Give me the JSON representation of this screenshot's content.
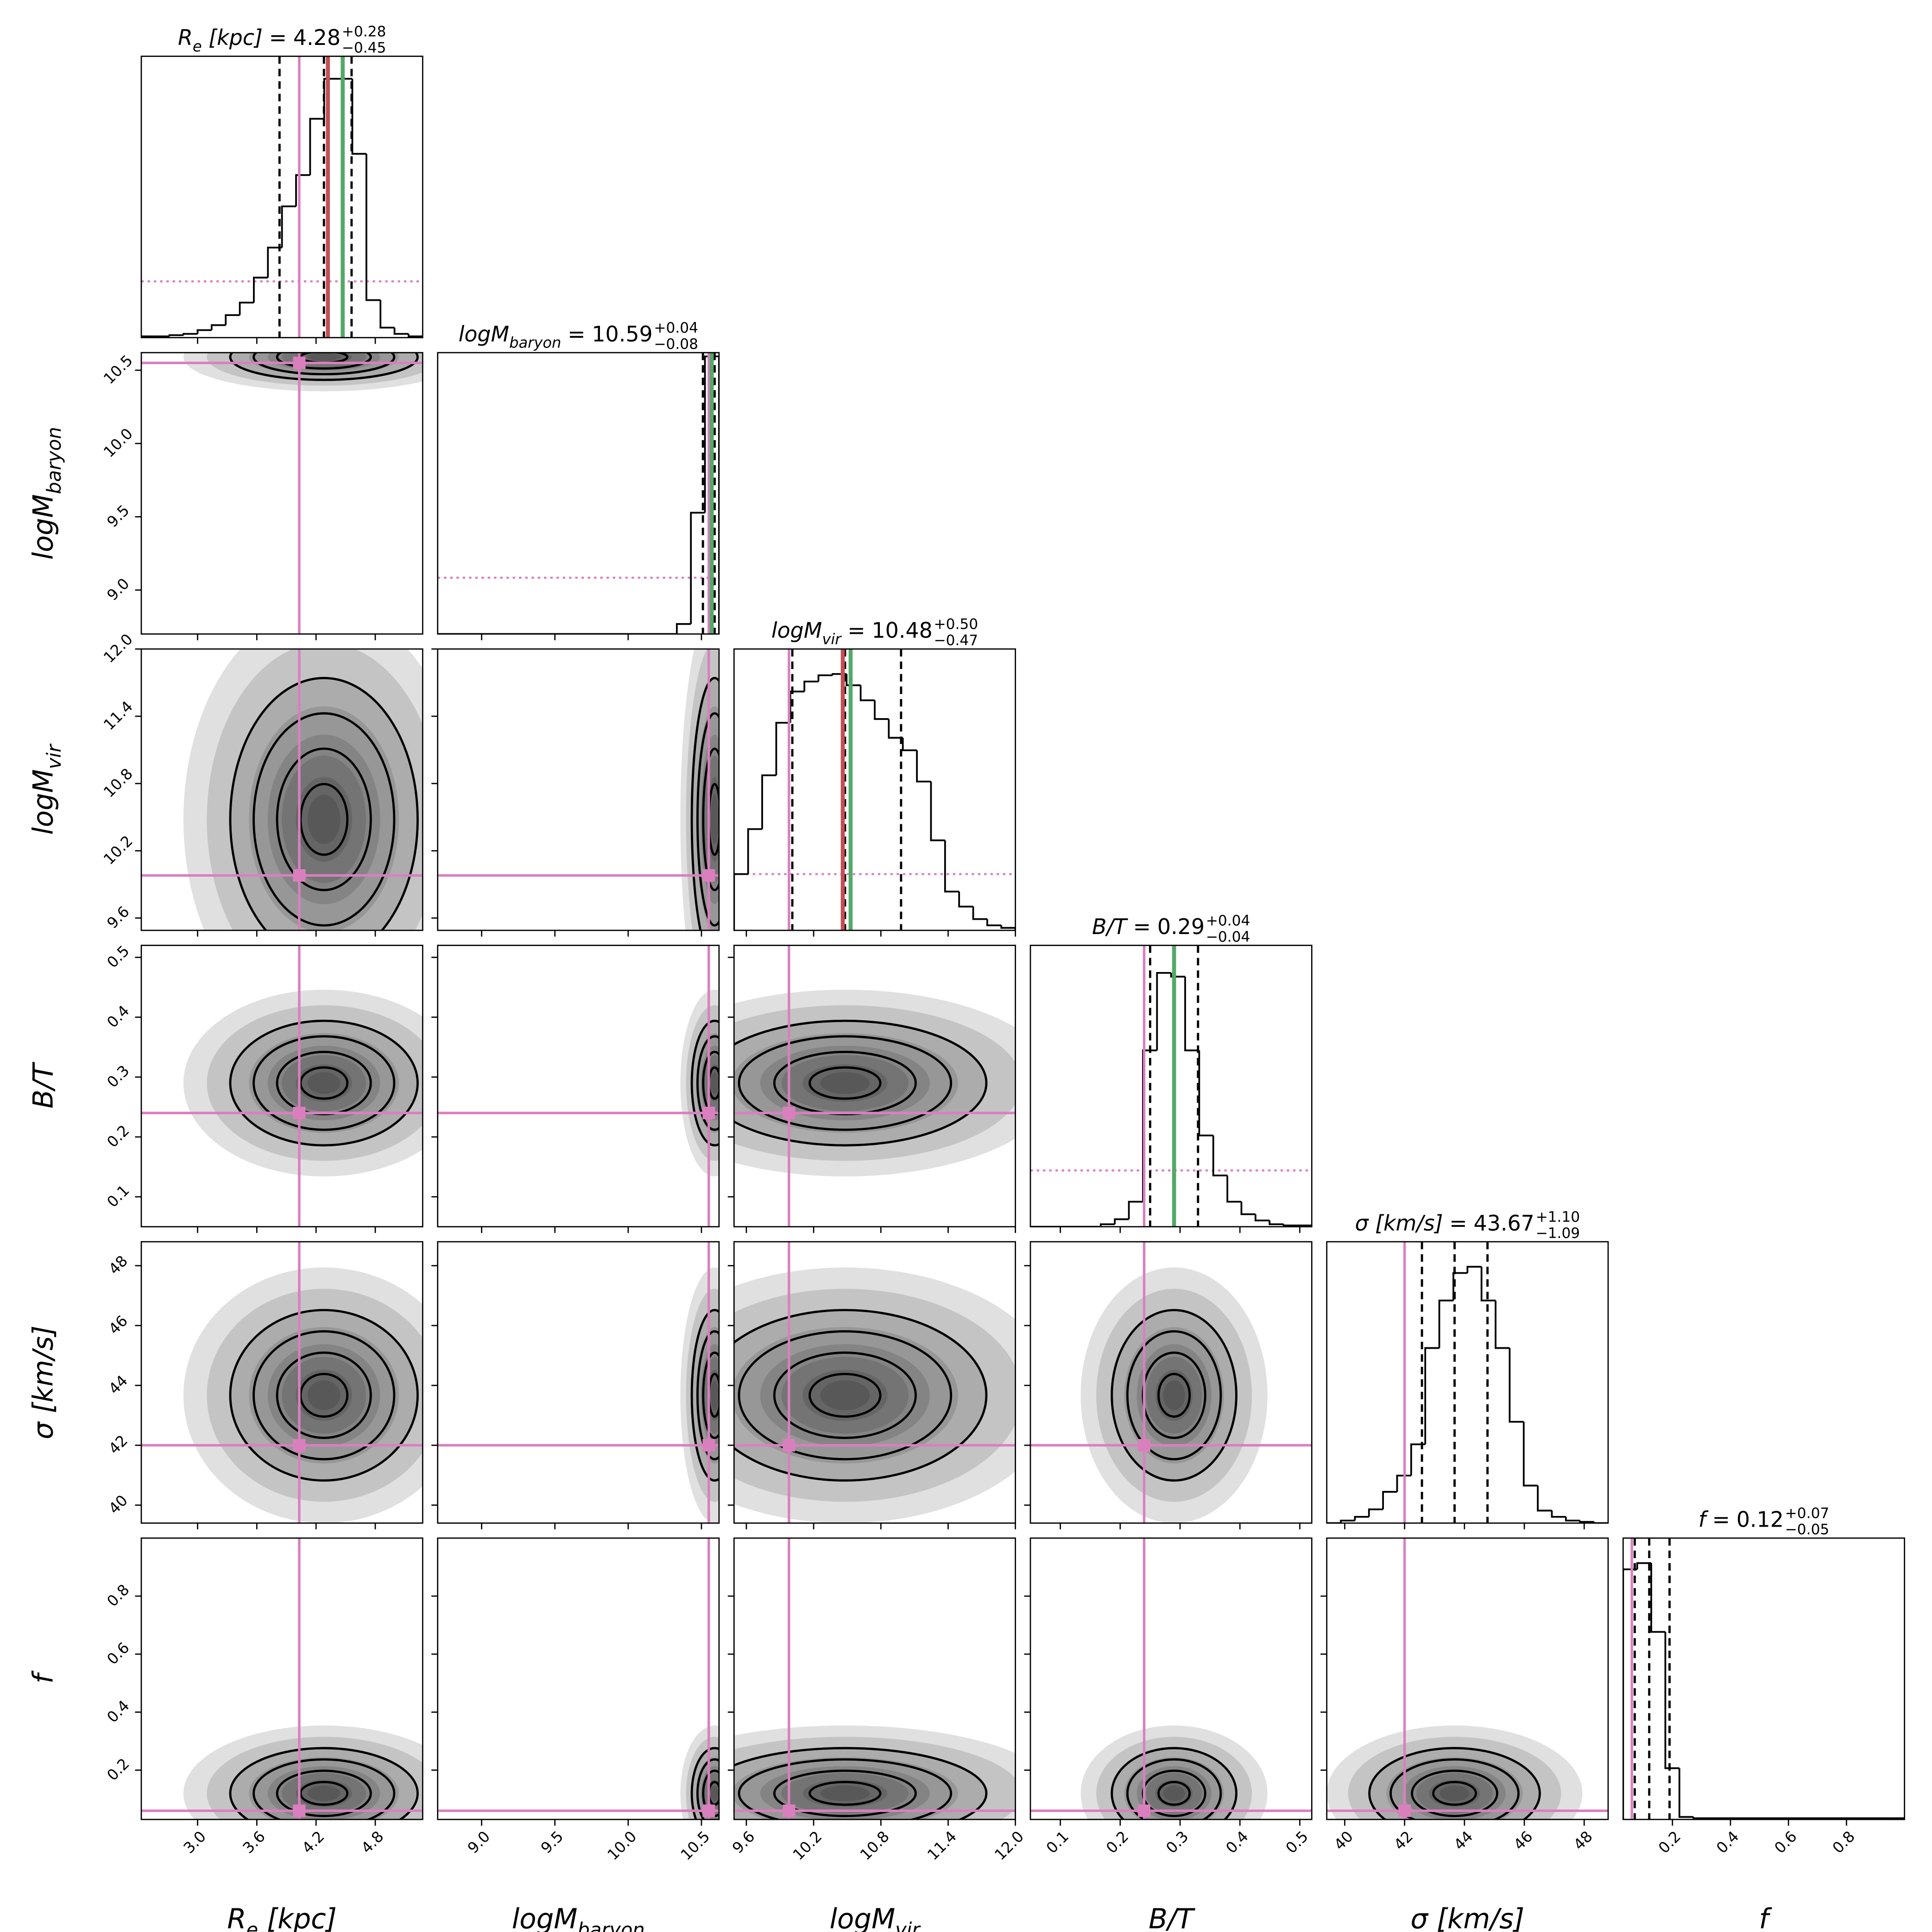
{
  "chart_data": {
    "type": "corner",
    "equals": "=",
    "hist_ylim": [
      0,
      225
    ],
    "colors": {
      "truth": "#da7fbe",
      "red_line": "#c44e52",
      "green_line": "#55a868",
      "hist": "#000000",
      "density": "#000000"
    },
    "params": [
      {
        "label": [
          {
            "text": "R"
          },
          {
            "text": "e",
            "sub": true
          },
          {
            "text": " [kpc]"
          }
        ],
        "lim": [
          2.43,
          5.28
        ],
        "ticks": [
          {
            "value": 3,
            "label": "3.0"
          },
          3.6,
          4.2,
          4.8
        ],
        "median": 4.28,
        "err_plus": 0.28,
        "err_plus_label": "+0.28",
        "err_minus": 0.45,
        "err_minus_label": "−0.45",
        "truth": 4.03,
        "red_line": 4.32,
        "green_line": 4.47,
        "prior_level": 45,
        "bins": [
          2.43,
          2.5725,
          2.715,
          2.8575,
          3.0,
          3.1425,
          3.285,
          3.4275,
          3.57,
          3.7125,
          3.855,
          3.9975,
          4.14,
          4.2825,
          4.425,
          4.5675,
          4.71,
          4.8525,
          4.995,
          5.1375,
          5.28
        ],
        "counts": [
          1,
          1,
          2,
          3,
          6,
          10,
          18,
          28,
          48,
          72,
          105,
          130,
          175,
          207,
          207,
          147,
          30,
          8,
          3,
          1
        ]
      },
      {
        "label": [
          {
            "text": "logM"
          },
          {
            "text": "baryon",
            "sub": true
          }
        ],
        "lim": [
          8.7,
          10.62
        ],
        "ticks": [
          {
            "value": 9,
            "label": "9.0"
          },
          9.5,
          {
            "value": 10,
            "label": "10.0"
          },
          10.5
        ],
        "median": 10.59,
        "err_plus": 0.04,
        "err_plus_label": "+0.04",
        "err_minus": 0.08,
        "err_minus_label": "−0.08",
        "truth": 10.55,
        "green_line": 10.57,
        "prior_level": 45,
        "bins": [
          8.7,
          8.796,
          8.892,
          8.988,
          9.084,
          9.18,
          9.276,
          9.372,
          9.468,
          9.564,
          9.66,
          9.756,
          9.852,
          9.948,
          10.044,
          10.14,
          10.236,
          10.332,
          10.428,
          10.524,
          10.62
        ],
        "counts": [
          0,
          0,
          0,
          0,
          0,
          0,
          0,
          0,
          0,
          0,
          0,
          0,
          0,
          0,
          0,
          0,
          0,
          8,
          97,
          222
        ]
      },
      {
        "label": [
          {
            "text": "logM"
          },
          {
            "text": "vir",
            "sub": true
          }
        ],
        "lim": [
          9.49,
          12.0
        ],
        "ticks": [
          9.6,
          10.2,
          10.8,
          11.4,
          {
            "value": 12,
            "label": "12.0"
          }
        ],
        "median": 10.48,
        "err_plus": 0.5,
        "err_plus_label": "+0.50",
        "err_minus": 0.47,
        "err_minus_label": "−0.47",
        "truth": 9.98,
        "red_line": 10.46,
        "green_line": 10.53,
        "prior_level": 45,
        "bins": [
          9.49,
          9.6155,
          9.741,
          9.8665,
          9.992,
          10.1175,
          10.243,
          10.3685,
          10.494,
          10.6195,
          10.745,
          10.8705,
          10.996,
          11.1215,
          11.247,
          11.3725,
          11.498,
          11.6235,
          11.749,
          11.8745,
          12.0
        ],
        "counts": [
          45,
          81,
          124,
          166,
          191,
          199,
          204,
          205,
          196,
          184,
          169,
          154,
          144,
          119,
          72,
          31,
          19,
          9,
          4,
          2
        ]
      },
      {
        "label": [
          {
            "text": "B/T"
          }
        ],
        "lim": [
          0.05,
          0.52
        ],
        "ticks": [
          0.1,
          0.2,
          0.3,
          0.4,
          0.5
        ],
        "median": 0.29,
        "err_plus": 0.04,
        "err_plus_label": "+0.04",
        "err_minus": 0.04,
        "err_minus_label": "−0.04",
        "truth": 0.24,
        "green_line": 0.29,
        "prior_level": 45,
        "bins": [
          0.05,
          0.0735,
          0.097,
          0.1205,
          0.144,
          0.1675,
          0.191,
          0.2145,
          0.238,
          0.2615,
          0.285,
          0.3085,
          0.332,
          0.3555,
          0.379,
          0.4025,
          0.426,
          0.4495,
          0.473,
          0.4965,
          0.52
        ],
        "counts": [
          0,
          0,
          0,
          0,
          0,
          2,
          6,
          20,
          141,
          203,
          200,
          141,
          73,
          41,
          20,
          10,
          5,
          2,
          1,
          1
        ]
      },
      {
        "label": [
          {
            "text": "σ [km/s]"
          }
        ],
        "lim": [
          39.4,
          48.8
        ],
        "ticks": [
          40,
          42,
          44,
          46,
          48
        ],
        "median": 43.67,
        "err_plus": 1.1,
        "err_plus_label": "+1.10",
        "err_minus": 1.09,
        "err_minus_label": "−1.09",
        "truth": 42,
        "bins": [
          39.4,
          39.87,
          40.34,
          40.81,
          41.28,
          41.75,
          42.22,
          42.69,
          43.16,
          43.63,
          44.1,
          44.57,
          45.04,
          45.51,
          45.98,
          46.45,
          46.92,
          47.39,
          47.86,
          48.33,
          48.8
        ],
        "counts": [
          0,
          2,
          5,
          11,
          25,
          38,
          63,
          140,
          178,
          200,
          205,
          178,
          140,
          81,
          30,
          10,
          5,
          2,
          1,
          0
        ]
      },
      {
        "label": [
          {
            "text": "f"
          }
        ],
        "lim": [
          0.03,
          1.0
        ],
        "ticks": [
          0.2,
          0.4,
          0.6,
          0.8
        ],
        "median": 0.12,
        "err_plus": 0.07,
        "err_plus_label": "+0.07",
        "err_minus": 0.05,
        "err_minus_label": "−0.05",
        "truth": 0.06,
        "bins": [
          0.03,
          0.0785,
          0.127,
          0.1755,
          0.224,
          0.2725,
          0.321,
          0.3695,
          0.418,
          0.4665,
          0.515,
          0.5635,
          0.612,
          0.6605,
          0.709,
          0.7575,
          0.806,
          0.8545,
          0.903,
          0.9515,
          1.0
        ],
        "counts": [
          200,
          205,
          150,
          41,
          2,
          1,
          1,
          1,
          1,
          1,
          1,
          1,
          1,
          1,
          1,
          1,
          1,
          1,
          1,
          1
        ]
      }
    ]
  }
}
